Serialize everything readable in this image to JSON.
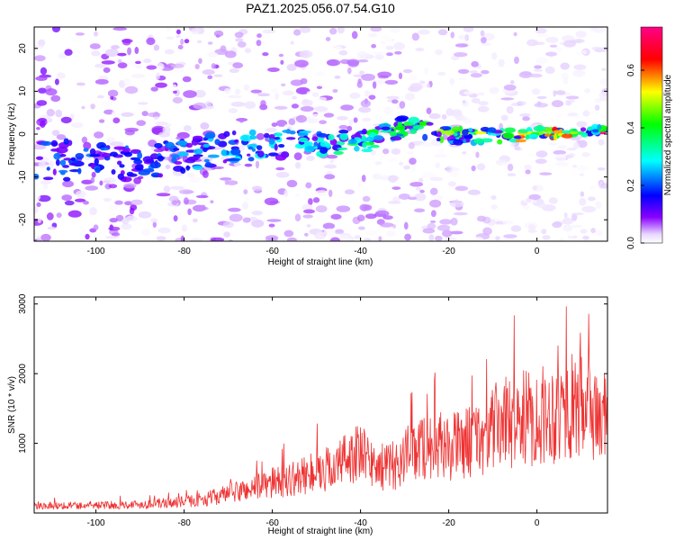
{
  "title": "PAZ1.2025.056.07.54.G10",
  "chart_data": [
    {
      "type": "heatmap",
      "title": "PAZ1.2025.056.07.54.G10",
      "xlabel": "Height of straight line (km)",
      "ylabel": "Frequency (Hz)",
      "xlim": [
        -114,
        16
      ],
      "ylim": [
        -25,
        25
      ],
      "xticks": [
        -100,
        -80,
        -60,
        -40,
        -20,
        0
      ],
      "yticks": [
        -20,
        -10,
        0,
        10,
        20
      ],
      "xtick_labels": [
        "-100",
        "-80",
        "-60",
        "-40",
        "-20",
        "0"
      ],
      "ytick_labels": [
        "-20",
        "-10",
        "0",
        "10",
        "20"
      ],
      "colorbar": {
        "label": "Normalized spectral amplitude",
        "range": [
          0,
          0.75
        ],
        "ticks": [
          0,
          0.2,
          0.4,
          0.6
        ],
        "tick_labels": [
          "0.0",
          "0.2",
          "0.4",
          "0.6"
        ],
        "colormap": [
          "#ffffff",
          "#8800ff",
          "#0000ff",
          "#00ffff",
          "#00ff00",
          "#ffff00",
          "#ff0000",
          "#ff0088"
        ]
      },
      "ridge": {
        "description_points_x": [
          -110,
          -100,
          -90,
          -80,
          -70,
          -60,
          -50,
          -40,
          -30,
          -20,
          -10,
          0,
          16
        ],
        "frequency_y": [
          -6,
          -6.5,
          -7,
          -5,
          -3,
          -2.5,
          -2,
          -2,
          2,
          0,
          -0.5,
          0,
          1
        ]
      }
    },
    {
      "type": "line",
      "xlabel": "Height of straight line (km)",
      "ylabel": "SNR (10 * v/v)",
      "xlim": [
        -114,
        16
      ],
      "ylim": [
        0,
        3100
      ],
      "xticks": [
        -100,
        -80,
        -60,
        -40,
        -20,
        0
      ],
      "yticks": [
        1000,
        2000,
        3000
      ],
      "xtick_labels": [
        "-100",
        "-80",
        "-60",
        "-40",
        "-20",
        "0"
      ],
      "ytick_labels": [
        "1000",
        "2000",
        "3000"
      ],
      "series": [
        {
          "color": "#ee3333",
          "envelope_x": [
            -114,
            -100,
            -90,
            -80,
            -75,
            -70,
            -65,
            -60,
            -55,
            -50,
            -45,
            -42,
            -40,
            -36,
            -32,
            -28,
            -24,
            -20,
            -16,
            -12,
            -8,
            -4,
            0,
            4,
            8,
            12,
            16
          ],
          "envelope_y": [
            150,
            150,
            170,
            220,
            280,
            380,
            480,
            600,
            680,
            800,
            950,
            1200,
            1150,
            900,
            950,
            1250,
            1350,
            1300,
            1400,
            1500,
            1800,
            1850,
            1900,
            2000,
            2100,
            2050,
            1800
          ]
        }
      ]
    }
  ]
}
